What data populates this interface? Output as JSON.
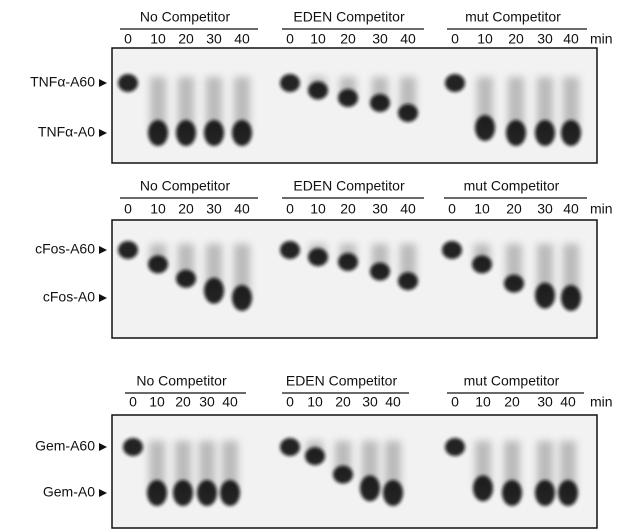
{
  "panels": [
    {
      "groups": [
        {
          "title": "No Competitor",
          "lanes": [
            "0",
            "10",
            "20",
            "30",
            "40"
          ]
        },
        {
          "title": "EDEN Competitor",
          "lanes": [
            "0",
            "10",
            "20",
            "30",
            "40"
          ]
        },
        {
          "title": "mut Competitor",
          "lanes": [
            "0",
            "10",
            "20",
            "30",
            "40"
          ]
        }
      ],
      "unit": "min",
      "markers": [
        "TNFα-A60",
        "TNFα-A0"
      ]
    },
    {
      "groups": [
        {
          "title": "No Competitor",
          "lanes": [
            "0",
            "10",
            "20",
            "30",
            "40"
          ]
        },
        {
          "title": "EDEN Competitor",
          "lanes": [
            "0",
            "10",
            "20",
            "30",
            "40"
          ]
        },
        {
          "title": "mut Competitor",
          "lanes": [
            "0",
            "10",
            "20",
            "30",
            "40"
          ]
        }
      ],
      "unit": "min",
      "markers": [
        "cFos-A60",
        "cFos-A0"
      ]
    },
    {
      "groups": [
        {
          "title": "No Competitor",
          "lanes": [
            "0",
            "10",
            "20",
            "30",
            "40"
          ]
        },
        {
          "title": "EDEN Competitor",
          "lanes": [
            "0",
            "10",
            "20",
            "30",
            "40"
          ]
        },
        {
          "title": "mut Competitor",
          "lanes": [
            "0",
            "10",
            "20",
            "30",
            "40"
          ]
        }
      ],
      "unit": "min",
      "markers": [
        "Gem-A60",
        "Gem-A0"
      ]
    }
  ]
}
